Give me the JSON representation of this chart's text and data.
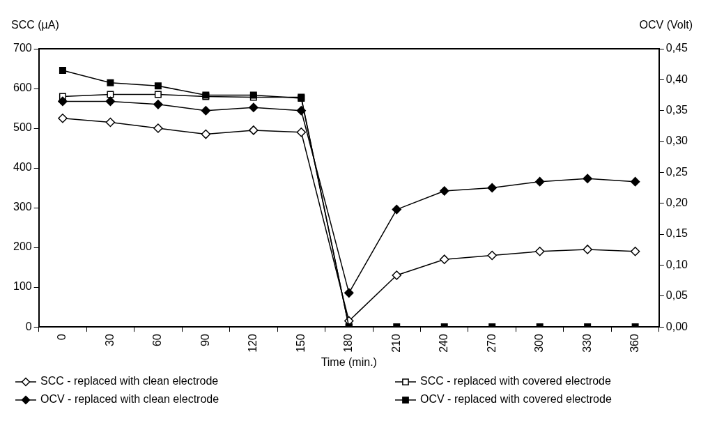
{
  "chart_data": {
    "type": "line",
    "xlabel": "Time (min.)",
    "ylabel": "SCC (µA)",
    "y2label": "OCV (Volt)",
    "categories": [
      "0",
      "30",
      "60",
      "90",
      "120",
      "150",
      "180",
      "210",
      "240",
      "270",
      "300",
      "330",
      "360"
    ],
    "ylim": [
      0,
      700
    ],
    "yticks": [
      0,
      100,
      200,
      300,
      400,
      500,
      600,
      700
    ],
    "y2lim": [
      0,
      0.45
    ],
    "y2ticks": [
      {
        "value": 0,
        "label": "0,00"
      },
      {
        "value": 0.05,
        "label": "0,05"
      },
      {
        "value": 0.1,
        "label": "0,10"
      },
      {
        "value": 0.15,
        "label": "0,15"
      },
      {
        "value": 0.2,
        "label": "0,20"
      },
      {
        "value": 0.25,
        "label": "0,25"
      },
      {
        "value": 0.3,
        "label": "0,30"
      },
      {
        "value": 0.35,
        "label": "0,35"
      },
      {
        "value": 0.4,
        "label": "0,40"
      },
      {
        "value": 0.45,
        "label": "0,45"
      }
    ],
    "grid": false,
    "legend": "bottom",
    "line_style": "solid",
    "series": [
      {
        "name": "SCC - replaced with clean electrode",
        "color": "#000000",
        "marker": "diamond",
        "values": [
          525,
          515,
          500,
          485,
          495,
          490,
          15,
          130,
          170,
          180,
          190,
          195,
          190
        ]
      },
      {
        "name": "SCC - replaced with covered electrode",
        "color": "#000000",
        "marker": "square",
        "values": [
          580,
          585,
          585,
          580,
          578,
          578,
          0,
          null,
          null,
          null,
          null,
          null,
          null
        ]
      },
      {
        "name": "OCV - replaced with clean electrode",
        "color": "#000000",
        "marker": "diamond",
        "axis": "y2",
        "values": [
          0.365,
          0.365,
          0.36,
          0.35,
          0.355,
          0.35,
          0.055,
          0.19,
          0.22,
          0.225,
          0.235,
          0.24,
          0.235
        ]
      },
      {
        "name": "OCV - replaced with covered electrode",
        "color": "#000000",
        "marker": "square",
        "axis": "y2",
        "values": [
          0.415,
          0.395,
          0.39,
          0.375,
          0.375,
          0.37,
          0,
          0,
          0,
          0,
          0,
          0,
          0
        ]
      }
    ]
  }
}
